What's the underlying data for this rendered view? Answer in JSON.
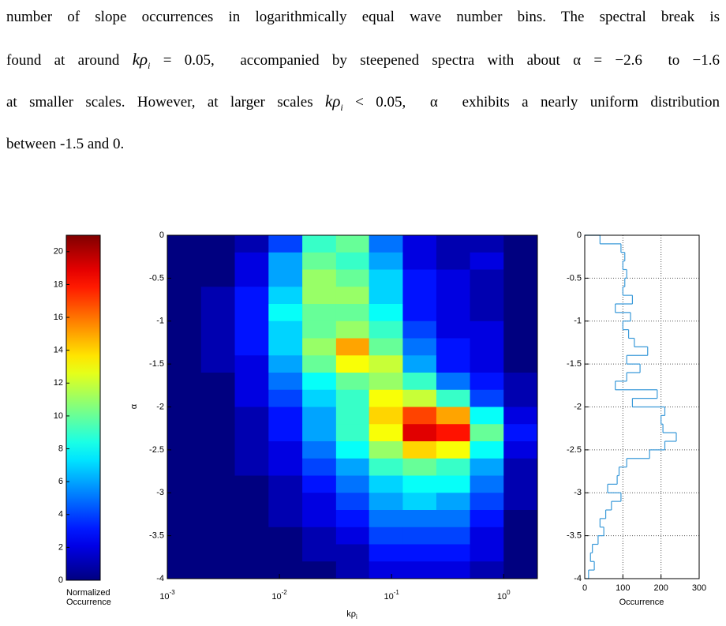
{
  "paragraph": {
    "lines": [
      [
        {
          "t": "number of slope occurrences in logarithmically equal wave number bins. The spectral break is",
          "s": "plain"
        }
      ],
      [
        {
          "t": "found at around ",
          "s": "plain"
        },
        {
          "t": "kρ",
          "s": "italic"
        },
        {
          "t": "i",
          "s": "sub"
        },
        {
          "t": " = 0.05,  accompanied by steepened spectra with about α = −2.6  to −1.6",
          "s": "plain"
        }
      ],
      [
        {
          "t": "at smaller scales. However, at larger scales ",
          "s": "plain"
        },
        {
          "t": "kρ",
          "s": "italic"
        },
        {
          "t": "i",
          "s": "sub"
        },
        {
          "t": " < 0.05,  α  exhibits a nearly uniform distribution",
          "s": "plain"
        }
      ],
      [
        {
          "t": "between -1.5 and 0.",
          "s": "plain"
        }
      ]
    ]
  },
  "chart_data": [
    {
      "type": "heatmap",
      "xlabel": "kρ",
      "xlabel_sub": "i",
      "ylabel": "α",
      "xscale": "log",
      "xlim": [
        0.001,
        2
      ],
      "ylim": [
        -4,
        0
      ],
      "xticks": [
        {
          "value": 0.001,
          "label": "10",
          "exponent": "-3"
        },
        {
          "value": 0.01,
          "label": "10",
          "exponent": "-2"
        },
        {
          "value": 0.1,
          "label": "10",
          "exponent": "-1"
        },
        {
          "value": 1,
          "label": "10",
          "exponent": "0"
        }
      ],
      "yticks": [
        0,
        -0.5,
        -1,
        -1.5,
        -2,
        -2.5,
        -3,
        -3.5,
        -4
      ],
      "x_bins": [
        0.001,
        0.002,
        0.004,
        0.008,
        0.016,
        0.032,
        0.063,
        0.126,
        0.251,
        0.501,
        1,
        2
      ],
      "y_bins": [
        0,
        -0.2,
        -0.4,
        -0.6,
        -0.8,
        -1,
        -1.2,
        -1.4,
        -1.6,
        -1.8,
        -2,
        -2.2,
        -2.4,
        -2.6,
        -2.8,
        -3,
        -3.2,
        -3.4,
        -3.6,
        -3.8,
        -4
      ],
      "values": [
        [
          0,
          0,
          1,
          4,
          9,
          10,
          5,
          2,
          1,
          1,
          0
        ],
        [
          0,
          0,
          2,
          6,
          10,
          9,
          6,
          2,
          1,
          2,
          0
        ],
        [
          0,
          0,
          2,
          6,
          11,
          10,
          7,
          3,
          2,
          1,
          0
        ],
        [
          0,
          1,
          3,
          7,
          11,
          11,
          7,
          3,
          2,
          1,
          0
        ],
        [
          0,
          1,
          3,
          8,
          10,
          10,
          8,
          3,
          2,
          1,
          0
        ],
        [
          0,
          1,
          3,
          7,
          10,
          11,
          9,
          4,
          2,
          2,
          0
        ],
        [
          0,
          1,
          3,
          7,
          11,
          15,
          10,
          5,
          3,
          2,
          0
        ],
        [
          0,
          1,
          2,
          6,
          10,
          13,
          12,
          6,
          3,
          2,
          0
        ],
        [
          0,
          0,
          2,
          5,
          8,
          10,
          11,
          9,
          5,
          3,
          1
        ],
        [
          0,
          0,
          2,
          4,
          7,
          9,
          13,
          12,
          9,
          4,
          1
        ],
        [
          0,
          0,
          1,
          3,
          6,
          9,
          14,
          17,
          15,
          8,
          2
        ],
        [
          0,
          0,
          1,
          3,
          6,
          9,
          13,
          19,
          18,
          10,
          3
        ],
        [
          0,
          0,
          1,
          2,
          5,
          8,
          11,
          14,
          13,
          8,
          2
        ],
        [
          0,
          0,
          1,
          2,
          4,
          6,
          9,
          10,
          9,
          6,
          1
        ],
        [
          0,
          0,
          0,
          1,
          3,
          5,
          7,
          8,
          8,
          5,
          1
        ],
        [
          0,
          0,
          0,
          1,
          2,
          4,
          6,
          7,
          6,
          4,
          1
        ],
        [
          0,
          0,
          0,
          1,
          2,
          3,
          5,
          5,
          5,
          3,
          0
        ],
        [
          0,
          0,
          0,
          0,
          1,
          2,
          4,
          4,
          4,
          2,
          0
        ],
        [
          0,
          0,
          0,
          0,
          1,
          1,
          3,
          3,
          3,
          2,
          0
        ],
        [
          0,
          0,
          0,
          0,
          0,
          1,
          2,
          2,
          2,
          1,
          0
        ]
      ],
      "colorbar": {
        "label": [
          "Normalized",
          "Occurrence"
        ],
        "lim": [
          0,
          21
        ],
        "ticks": [
          0,
          2,
          4,
          6,
          8,
          10,
          12,
          14,
          16,
          18,
          20
        ],
        "colormap": "jet"
      }
    },
    {
      "type": "histogram",
      "orientation": "horizontal",
      "xlabel": "Occurrence",
      "color": "#3a9ad9",
      "grid": true,
      "xlim": [
        0,
        300
      ],
      "xticks": [
        0,
        100,
        200,
        300
      ],
      "ylim": [
        -4,
        0
      ],
      "yticks": [
        0,
        -0.5,
        -1,
        -1.5,
        -2,
        -2.5,
        -3,
        -3.5,
        -4
      ],
      "bins": [
        0,
        -0.1,
        -0.2,
        -0.3,
        -0.4,
        -0.5,
        -0.6,
        -0.7,
        -0.8,
        -0.9,
        -1,
        -1.1,
        -1.2,
        -1.3,
        -1.4,
        -1.5,
        -1.6,
        -1.7,
        -1.8,
        -1.9,
        -2,
        -2.1,
        -2.2,
        -2.3,
        -2.4,
        -2.5,
        -2.6,
        -2.7,
        -2.8,
        -2.9,
        -3,
        -3.1,
        -3.2,
        -3.3,
        -3.4,
        -3.5,
        -3.6,
        -3.7,
        -3.8,
        -3.9,
        -4
      ],
      "values": [
        40,
        95,
        105,
        100,
        110,
        105,
        100,
        125,
        80,
        120,
        100,
        115,
        130,
        165,
        110,
        145,
        110,
        80,
        190,
        125,
        210,
        200,
        205,
        240,
        210,
        170,
        110,
        90,
        85,
        60,
        95,
        70,
        55,
        40,
        50,
        35,
        20,
        15,
        25,
        10
      ]
    }
  ]
}
